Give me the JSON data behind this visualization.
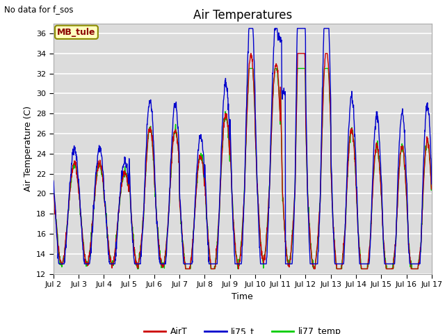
{
  "title": "Air Temperatures",
  "no_data_text": "No data for f_sos",
  "mb_tule_label": "MB_tule",
  "xlabel": "Time",
  "ylabel": "Air Temperature (C)",
  "ylim": [
    12,
    37
  ],
  "yticks": [
    12,
    14,
    16,
    18,
    20,
    22,
    24,
    26,
    28,
    30,
    32,
    34,
    36
  ],
  "bg_color": "#dcdcdc",
  "fig_color": "#ffffff",
  "airT_color": "#cc0000",
  "li75_color": "#0000cc",
  "li77_color": "#00cc00",
  "legend_labels": [
    "AirT",
    "li75_t",
    "li77_temp"
  ],
  "num_days": 15,
  "pts_per_day": 96,
  "title_fontsize": 12,
  "axis_label_fontsize": 9,
  "tick_fontsize": 8
}
